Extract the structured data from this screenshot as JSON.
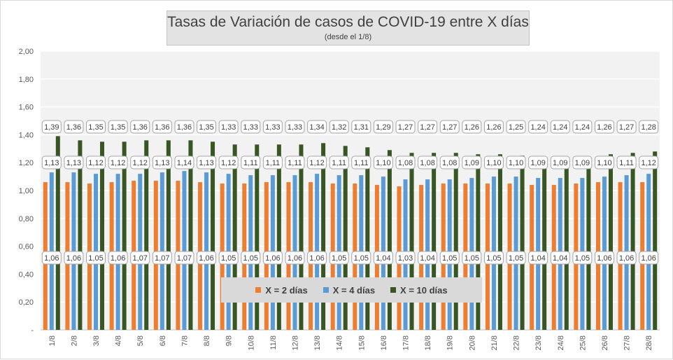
{
  "chart_data": {
    "type": "bar",
    "title": "Tasas de Variación de casos de COVID-19 entre X días",
    "subtitle": "(desde el 1/8)",
    "categories": [
      "1/8",
      "2/8",
      "3/8",
      "4/8",
      "5/8",
      "6/8",
      "7/8",
      "8/8",
      "9/8",
      "10/8",
      "11/8",
      "12/8",
      "13/8",
      "14/8",
      "15/8",
      "16/8",
      "17/8",
      "18/8",
      "19/8",
      "20/8",
      "21/8",
      "22/8",
      "23/8",
      "24/8",
      "25/8",
      "26/8",
      "27/8",
      "28/8"
    ],
    "series": [
      {
        "name": "X = 2 días",
        "color": "#ed7d31",
        "values": [
          1.06,
          1.06,
          1.05,
          1.06,
          1.07,
          1.07,
          1.07,
          1.06,
          1.05,
          1.05,
          1.06,
          1.06,
          1.06,
          1.05,
          1.05,
          1.04,
          1.03,
          1.04,
          1.05,
          1.05,
          1.05,
          1.05,
          1.04,
          1.04,
          1.05,
          1.06,
          1.06,
          1.06
        ],
        "labels": [
          "1,06",
          "1,06",
          "1,05",
          "1,06",
          "1,07",
          "1,07",
          "1,07",
          "1,06",
          "1,05",
          "1,05",
          "1,06",
          "1,06",
          "1,06",
          "1,05",
          "1,05",
          "1,04",
          "1,03",
          "1,04",
          "1,05",
          "1,05",
          "1,05",
          "1,05",
          "1,04",
          "1,04",
          "1,05",
          "1,06",
          "1,06",
          "1,06"
        ]
      },
      {
        "name": "X = 4 días",
        "color": "#5b9bd5",
        "values": [
          1.13,
          1.13,
          1.12,
          1.12,
          1.12,
          1.13,
          1.14,
          1.13,
          1.12,
          1.11,
          1.11,
          1.11,
          1.12,
          1.11,
          1.11,
          1.1,
          1.08,
          1.08,
          1.08,
          1.09,
          1.1,
          1.1,
          1.09,
          1.09,
          1.09,
          1.1,
          1.11,
          1.12
        ],
        "labels": [
          "1,13",
          "1,13",
          "1,12",
          "1,12",
          "1,12",
          "1,13",
          "1,14",
          "1,13",
          "1,12",
          "1,11",
          "1,11",
          "1,11",
          "1,12",
          "1,11",
          "1,11",
          "1,10",
          "1,08",
          "1,08",
          "1,08",
          "1,09",
          "1,10",
          "1,10",
          "1,09",
          "1,09",
          "1,09",
          "1,10",
          "1,11",
          "1,12"
        ]
      },
      {
        "name": "X = 10 días",
        "color": "#375623",
        "values": [
          1.39,
          1.36,
          1.35,
          1.35,
          1.36,
          1.36,
          1.36,
          1.35,
          1.33,
          1.33,
          1.33,
          1.33,
          1.34,
          1.32,
          1.31,
          1.29,
          1.27,
          1.27,
          1.27,
          1.26,
          1.26,
          1.25,
          1.24,
          1.24,
          1.24,
          1.26,
          1.27,
          1.28
        ],
        "labels": [
          "1,39",
          "1,36",
          "1,35",
          "1,35",
          "1,36",
          "1,36",
          "1,36",
          "1,35",
          "1,33",
          "1,33",
          "1,33",
          "1,33",
          "1,34",
          "1,32",
          "1,31",
          "1,29",
          "1,27",
          "1,27",
          "1,27",
          "1,26",
          "1,26",
          "1,25",
          "1,24",
          "1,24",
          "1,24",
          "1,26",
          "1,27",
          "1,28"
        ]
      }
    ],
    "ylim": [
      0,
      2
    ],
    "yticks": [
      0,
      0.2,
      0.4,
      0.6,
      0.8,
      1.0,
      1.2,
      1.4,
      1.6,
      1.8,
      2.0
    ],
    "ytick_labels": [
      "-",
      "0,20",
      "0,40",
      "0,60",
      "0,80",
      "1,00",
      "1,20",
      "1,40",
      "1,60",
      "1,80",
      "2,00"
    ],
    "grid": true,
    "legend_position": "bottom-center",
    "plot_background": "#f2f2f2",
    "grid_color": "#ffffff"
  }
}
